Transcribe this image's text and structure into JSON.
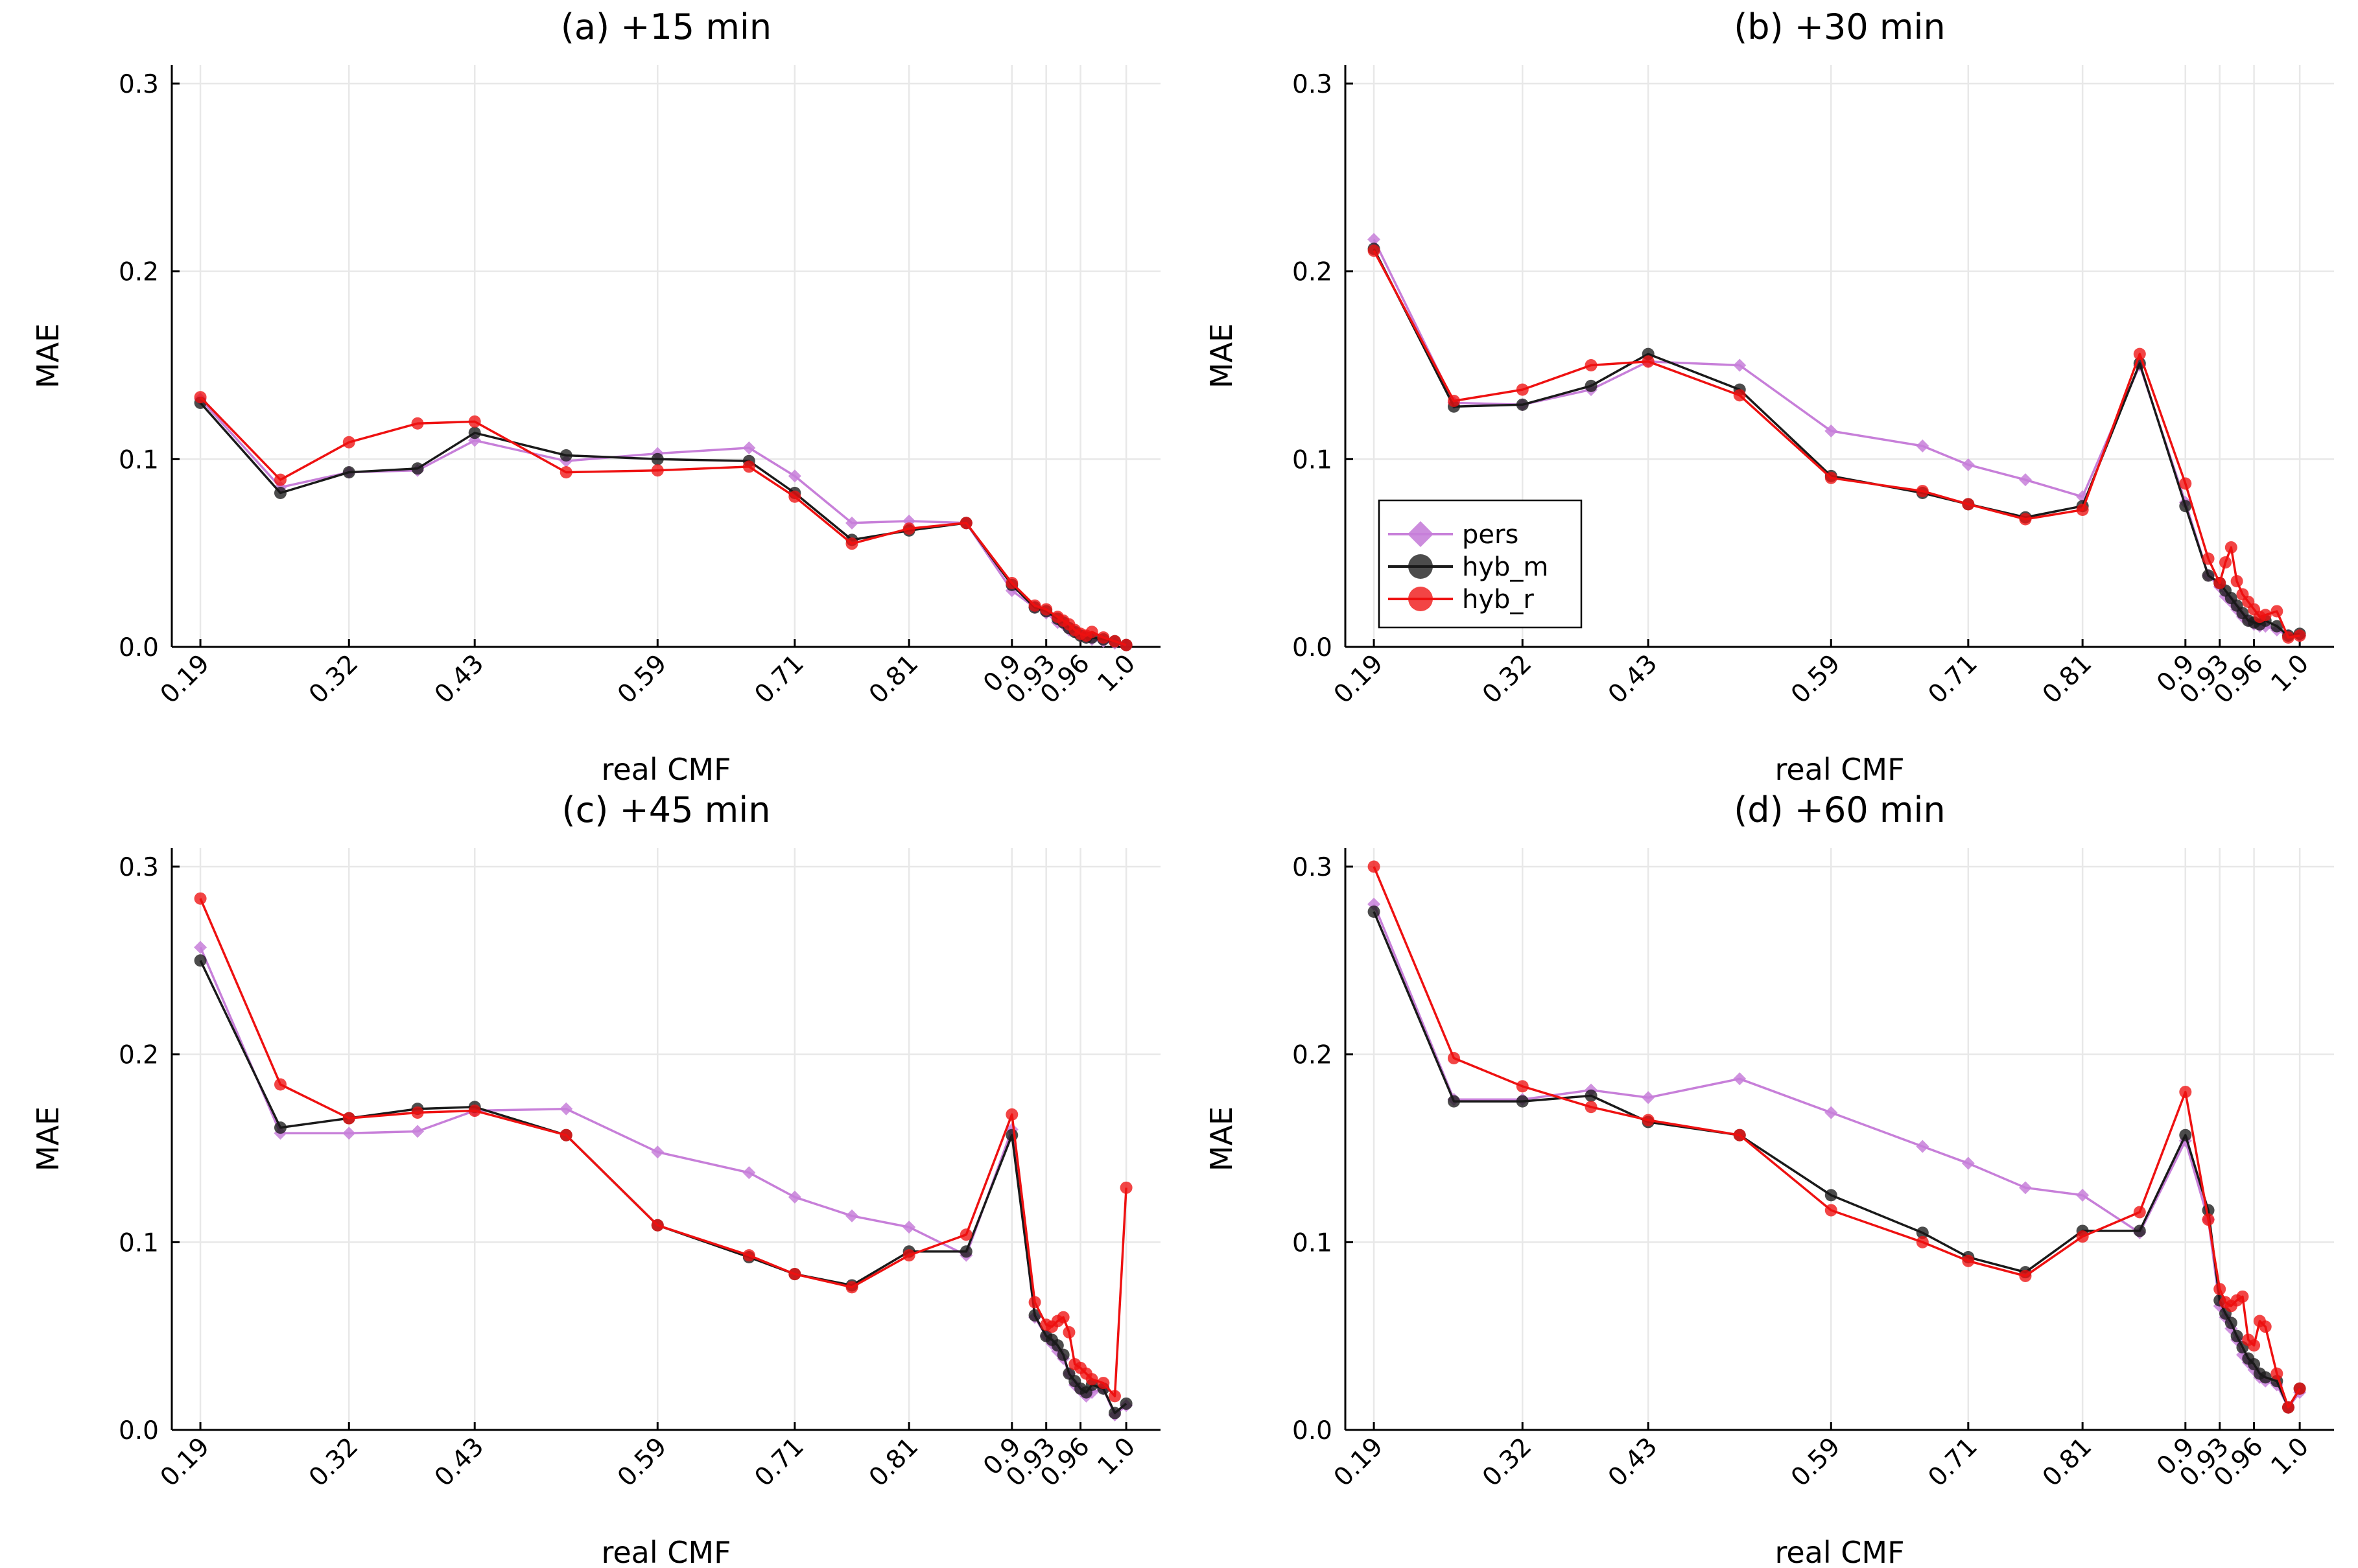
{
  "figure": {
    "colors": {
      "pers": "#c77fd9",
      "hyb_m": "#1a1a1a",
      "hyb_r": "#ee1111"
    },
    "legend": [
      {
        "key": "pers",
        "label": "pers",
        "marker": "diamond"
      },
      {
        "key": "hyb_m",
        "label": "hyb_m",
        "marker": "circle"
      },
      {
        "key": "hyb_r",
        "label": "hyb_r",
        "marker": "circle"
      }
    ]
  },
  "chart_data": [
    {
      "type": "line",
      "title": "(a) +15 min",
      "xlabel": "real CMF",
      "ylabel": "MAE",
      "xlim": [
        0.165,
        1.03
      ],
      "ylim": [
        0.0,
        0.31
      ],
      "xticks": [
        0.19,
        0.32,
        0.43,
        0.59,
        0.71,
        0.81,
        0.9,
        0.93,
        0.96,
        1.0
      ],
      "xtick_labels": [
        "0.19",
        "0.32",
        "0.43",
        "0.59",
        "0.71",
        "0.81",
        "0.9",
        "0.93",
        "0.96",
        "1.0"
      ],
      "yticks": [
        0.0,
        0.1,
        0.2,
        0.3
      ],
      "ytick_labels": [
        "0.0",
        "0.1",
        "0.2",
        "0.3"
      ],
      "series": [
        {
          "name": "pers",
          "x": [
            0.19,
            0.26,
            0.32,
            0.38,
            0.43,
            0.51,
            0.59,
            0.67,
            0.71,
            0.76,
            0.81,
            0.86,
            0.9,
            0.92,
            0.93,
            0.94,
            0.945,
            0.95,
            0.955,
            0.96,
            0.965,
            0.97,
            0.98,
            0.99,
            1.0
          ],
          "y": [
            0.132,
            0.085,
            0.093,
            0.094,
            0.11,
            0.099,
            0.103,
            0.106,
            0.091,
            0.066,
            0.067,
            0.066,
            0.03,
            0.021,
            0.018,
            0.013,
            0.012,
            0.009,
            0.008,
            0.006,
            0.005,
            0.004,
            0.003,
            0.002,
            0.001
          ]
        },
        {
          "name": "hyb_m",
          "x": [
            0.19,
            0.26,
            0.32,
            0.38,
            0.43,
            0.51,
            0.59,
            0.67,
            0.71,
            0.76,
            0.81,
            0.86,
            0.9,
            0.92,
            0.93,
            0.94,
            0.945,
            0.95,
            0.955,
            0.96,
            0.965,
            0.97,
            0.98,
            0.99,
            1.0
          ],
          "y": [
            0.13,
            0.082,
            0.093,
            0.095,
            0.114,
            0.102,
            0.1,
            0.099,
            0.082,
            0.057,
            0.062,
            0.066,
            0.033,
            0.021,
            0.019,
            0.015,
            0.013,
            0.01,
            0.008,
            0.006,
            0.005,
            0.005,
            0.004,
            0.003,
            0.001
          ]
        },
        {
          "name": "hyb_r",
          "x": [
            0.19,
            0.26,
            0.32,
            0.38,
            0.43,
            0.51,
            0.59,
            0.67,
            0.71,
            0.76,
            0.81,
            0.86,
            0.9,
            0.92,
            0.93,
            0.94,
            0.945,
            0.95,
            0.955,
            0.96,
            0.965,
            0.97,
            0.98,
            0.99,
            1.0
          ],
          "y": [
            0.133,
            0.089,
            0.109,
            0.119,
            0.12,
            0.093,
            0.094,
            0.096,
            0.08,
            0.055,
            0.063,
            0.066,
            0.034,
            0.022,
            0.02,
            0.016,
            0.014,
            0.012,
            0.009,
            0.007,
            0.006,
            0.008,
            0.005,
            0.003,
            0.001
          ]
        }
      ]
    },
    {
      "type": "line",
      "title": "(b) +30 min",
      "xlabel": "real CMF",
      "ylabel": "MAE",
      "xlim": [
        0.165,
        1.03
      ],
      "ylim": [
        0.0,
        0.31
      ],
      "xticks": [
        0.19,
        0.32,
        0.43,
        0.59,
        0.71,
        0.81,
        0.9,
        0.93,
        0.96,
        1.0
      ],
      "xtick_labels": [
        "0.19",
        "0.32",
        "0.43",
        "0.59",
        "0.71",
        "0.81",
        "0.9",
        "0.93",
        "0.96",
        "1.0"
      ],
      "yticks": [
        0.0,
        0.1,
        0.2,
        0.3
      ],
      "ytick_labels": [
        "0.0",
        "0.1",
        "0.2",
        "0.3"
      ],
      "legend_position": "bottom-left",
      "series": [
        {
          "name": "pers",
          "x": [
            0.19,
            0.26,
            0.32,
            0.38,
            0.43,
            0.51,
            0.59,
            0.67,
            0.71,
            0.76,
            0.81,
            0.86,
            0.9,
            0.92,
            0.93,
            0.935,
            0.94,
            0.945,
            0.95,
            0.955,
            0.96,
            0.965,
            0.97,
            0.98,
            0.99,
            1.0
          ],
          "y": [
            0.217,
            0.13,
            0.129,
            0.137,
            0.152,
            0.15,
            0.115,
            0.107,
            0.097,
            0.089,
            0.08,
            0.15,
            0.077,
            0.038,
            0.032,
            0.027,
            0.024,
            0.02,
            0.016,
            0.014,
            0.012,
            0.011,
            0.011,
            0.009,
            0.006,
            0.006
          ]
        },
        {
          "name": "hyb_m",
          "x": [
            0.19,
            0.26,
            0.32,
            0.38,
            0.43,
            0.51,
            0.59,
            0.67,
            0.71,
            0.76,
            0.81,
            0.86,
            0.9,
            0.92,
            0.93,
            0.935,
            0.94,
            0.945,
            0.95,
            0.955,
            0.96,
            0.965,
            0.97,
            0.98,
            0.99,
            1.0
          ],
          "y": [
            0.212,
            0.128,
            0.129,
            0.139,
            0.156,
            0.137,
            0.091,
            0.082,
            0.076,
            0.069,
            0.075,
            0.151,
            0.075,
            0.038,
            0.034,
            0.03,
            0.026,
            0.022,
            0.018,
            0.014,
            0.013,
            0.012,
            0.014,
            0.011,
            0.006,
            0.007
          ]
        },
        {
          "name": "hyb_r",
          "x": [
            0.19,
            0.26,
            0.32,
            0.38,
            0.43,
            0.51,
            0.59,
            0.67,
            0.71,
            0.76,
            0.81,
            0.86,
            0.9,
            0.92,
            0.93,
            0.935,
            0.94,
            0.945,
            0.95,
            0.955,
            0.96,
            0.965,
            0.97,
            0.98,
            0.99,
            1.0
          ],
          "y": [
            0.211,
            0.131,
            0.137,
            0.15,
            0.152,
            0.134,
            0.09,
            0.083,
            0.076,
            0.068,
            0.073,
            0.156,
            0.087,
            0.047,
            0.034,
            0.045,
            0.053,
            0.035,
            0.028,
            0.024,
            0.02,
            0.016,
            0.017,
            0.019,
            0.005,
            0.006
          ]
        }
      ]
    },
    {
      "type": "line",
      "title": "(c) +45 min",
      "xlabel": "real CMF",
      "ylabel": "MAE",
      "xlim": [
        0.165,
        1.03
      ],
      "ylim": [
        0.0,
        0.31
      ],
      "xticks": [
        0.19,
        0.32,
        0.43,
        0.59,
        0.71,
        0.81,
        0.9,
        0.93,
        0.96,
        1.0
      ],
      "xtick_labels": [
        "0.19",
        "0.32",
        "0.43",
        "0.59",
        "0.71",
        "0.81",
        "0.9",
        "0.93",
        "0.96",
        "1.0"
      ],
      "yticks": [
        0.0,
        0.1,
        0.2,
        0.3
      ],
      "ytick_labels": [
        "0.0",
        "0.1",
        "0.2",
        "0.3"
      ],
      "series": [
        {
          "name": "pers",
          "x": [
            0.19,
            0.26,
            0.32,
            0.38,
            0.43,
            0.51,
            0.59,
            0.67,
            0.71,
            0.76,
            0.81,
            0.86,
            0.9,
            0.92,
            0.93,
            0.935,
            0.94,
            0.945,
            0.95,
            0.955,
            0.96,
            0.965,
            0.97,
            0.98,
            0.99,
            1.0
          ],
          "y": [
            0.257,
            0.158,
            0.158,
            0.159,
            0.17,
            0.171,
            0.148,
            0.137,
            0.124,
            0.114,
            0.108,
            0.093,
            0.16,
            0.06,
            0.05,
            0.046,
            0.042,
            0.038,
            0.03,
            0.024,
            0.021,
            0.018,
            0.02,
            0.022,
            0.008,
            0.013
          ]
        },
        {
          "name": "hyb_m",
          "x": [
            0.19,
            0.26,
            0.32,
            0.38,
            0.43,
            0.51,
            0.59,
            0.67,
            0.71,
            0.76,
            0.81,
            0.86,
            0.9,
            0.92,
            0.93,
            0.935,
            0.94,
            0.945,
            0.95,
            0.955,
            0.96,
            0.965,
            0.97,
            0.98,
            0.99,
            1.0
          ],
          "y": [
            0.25,
            0.161,
            0.166,
            0.171,
            0.172,
            0.157,
            0.109,
            0.092,
            0.083,
            0.077,
            0.095,
            0.095,
            0.157,
            0.061,
            0.05,
            0.048,
            0.045,
            0.04,
            0.03,
            0.026,
            0.022,
            0.02,
            0.024,
            0.022,
            0.009,
            0.014
          ]
        },
        {
          "name": "hyb_r",
          "x": [
            0.19,
            0.26,
            0.32,
            0.38,
            0.43,
            0.51,
            0.59,
            0.67,
            0.71,
            0.76,
            0.81,
            0.86,
            0.9,
            0.92,
            0.93,
            0.935,
            0.94,
            0.945,
            0.95,
            0.955,
            0.96,
            0.965,
            0.97,
            0.98,
            0.99,
            1.0
          ],
          "y": [
            0.283,
            0.184,
            0.166,
            0.169,
            0.17,
            0.157,
            0.109,
            0.093,
            0.083,
            0.076,
            0.093,
            0.104,
            0.168,
            0.068,
            0.056,
            0.055,
            0.058,
            0.06,
            0.052,
            0.035,
            0.033,
            0.03,
            0.027,
            0.025,
            0.018,
            0.129
          ]
        }
      ]
    },
    {
      "type": "line",
      "title": "(d) +60 min",
      "xlabel": "real CMF",
      "ylabel": "MAE",
      "xlim": [
        0.165,
        1.03
      ],
      "ylim": [
        0.0,
        0.31
      ],
      "xticks": [
        0.19,
        0.32,
        0.43,
        0.59,
        0.71,
        0.81,
        0.9,
        0.93,
        0.96,
        1.0
      ],
      "xtick_labels": [
        "0.19",
        "0.32",
        "0.43",
        "0.59",
        "0.71",
        "0.81",
        "0.9",
        "0.93",
        "0.96",
        "1.0"
      ],
      "yticks": [
        0.0,
        0.1,
        0.2,
        0.3
      ],
      "ytick_labels": [
        "0.0",
        "0.1",
        "0.2",
        "0.3"
      ],
      "series": [
        {
          "name": "pers",
          "x": [
            0.19,
            0.26,
            0.32,
            0.38,
            0.43,
            0.51,
            0.59,
            0.67,
            0.71,
            0.76,
            0.81,
            0.86,
            0.9,
            0.92,
            0.93,
            0.935,
            0.94,
            0.945,
            0.95,
            0.955,
            0.96,
            0.965,
            0.97,
            0.98,
            0.99,
            1.0
          ],
          "y": [
            0.28,
            0.176,
            0.176,
            0.181,
            0.177,
            0.187,
            0.169,
            0.151,
            0.142,
            0.129,
            0.125,
            0.105,
            0.154,
            0.112,
            0.066,
            0.06,
            0.054,
            0.048,
            0.04,
            0.036,
            0.032,
            0.028,
            0.026,
            0.024,
            0.012,
            0.02
          ]
        },
        {
          "name": "hyb_m",
          "x": [
            0.19,
            0.26,
            0.32,
            0.38,
            0.43,
            0.51,
            0.59,
            0.67,
            0.71,
            0.76,
            0.81,
            0.86,
            0.9,
            0.92,
            0.93,
            0.935,
            0.94,
            0.945,
            0.95,
            0.955,
            0.96,
            0.965,
            0.97,
            0.98,
            0.99,
            1.0
          ],
          "y": [
            0.276,
            0.175,
            0.175,
            0.178,
            0.164,
            0.157,
            0.125,
            0.105,
            0.092,
            0.084,
            0.106,
            0.106,
            0.157,
            0.117,
            0.069,
            0.062,
            0.057,
            0.05,
            0.044,
            0.038,
            0.035,
            0.03,
            0.028,
            0.026,
            0.012,
            0.022
          ]
        },
        {
          "name": "hyb_r",
          "x": [
            0.19,
            0.26,
            0.32,
            0.38,
            0.43,
            0.51,
            0.59,
            0.67,
            0.71,
            0.76,
            0.81,
            0.86,
            0.9,
            0.92,
            0.93,
            0.935,
            0.94,
            0.945,
            0.95,
            0.955,
            0.96,
            0.965,
            0.97,
            0.98,
            0.99,
            1.0
          ],
          "y": [
            0.3,
            0.198,
            0.183,
            0.172,
            0.165,
            0.157,
            0.117,
            0.1,
            0.09,
            0.082,
            0.103,
            0.116,
            0.18,
            0.112,
            0.075,
            0.068,
            0.066,
            0.069,
            0.071,
            0.048,
            0.045,
            0.058,
            0.055,
            0.03,
            0.012,
            0.022
          ]
        }
      ]
    }
  ]
}
